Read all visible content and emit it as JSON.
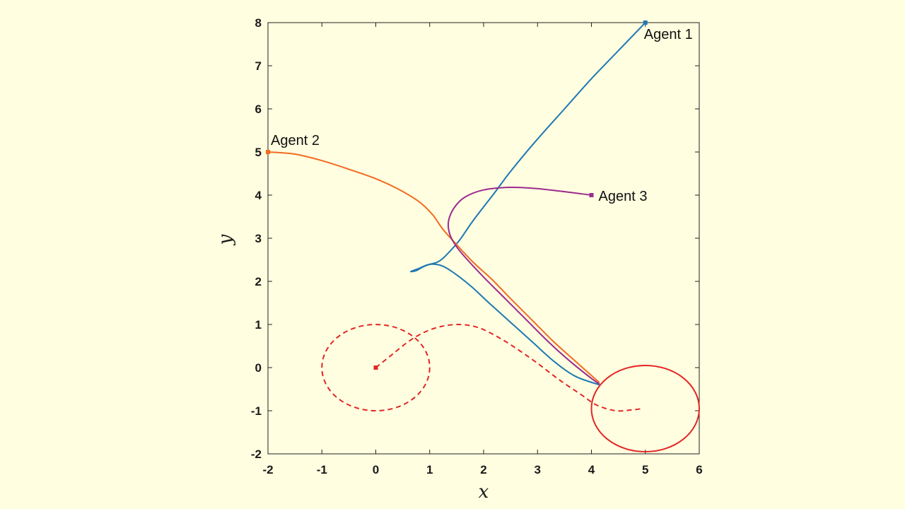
{
  "chart_data": {
    "type": "line",
    "title": "",
    "xlabel": "x",
    "ylabel": "y",
    "xlim": [
      -2,
      6
    ],
    "ylim": [
      -2,
      8
    ],
    "xticks": [
      "-2",
      "-1",
      "0",
      "1",
      "2",
      "3",
      "4",
      "5",
      "6"
    ],
    "yticks": [
      "-2",
      "-1",
      "0",
      "1",
      "2",
      "3",
      "4",
      "5",
      "6",
      "7",
      "8"
    ],
    "grid": false,
    "colors": {
      "agent1": "#1f78b4",
      "agent2": "#f26b21",
      "agent3": "#9b2b8f",
      "target": "#e32626",
      "background": "#fffee0"
    },
    "series": [
      {
        "name": "Agent 1",
        "style": "solid",
        "points": [
          [
            5,
            8
          ],
          [
            4.5,
            7.35
          ],
          [
            4,
            6.7
          ],
          [
            3.5,
            6.0
          ],
          [
            3,
            5.3
          ],
          [
            2.5,
            4.55
          ],
          [
            2.2,
            4.05
          ],
          [
            1.8,
            3.4
          ],
          [
            1.55,
            2.95
          ],
          [
            1.3,
            2.6
          ],
          [
            1.15,
            2.45
          ],
          [
            0.95,
            2.38
          ],
          [
            0.8,
            2.3
          ],
          [
            0.65,
            2.23
          ],
          [
            0.75,
            2.25
          ],
          [
            0.9,
            2.35
          ],
          [
            1.05,
            2.4
          ],
          [
            1.25,
            2.35
          ],
          [
            1.5,
            2.15
          ],
          [
            1.8,
            1.85
          ],
          [
            2.1,
            1.5
          ],
          [
            2.5,
            1.05
          ],
          [
            2.9,
            0.6
          ],
          [
            3.3,
            0.15
          ],
          [
            3.7,
            -0.2
          ],
          [
            4.15,
            -0.4
          ]
        ]
      },
      {
        "name": "Agent 2",
        "style": "solid",
        "points": [
          [
            -2,
            5
          ],
          [
            -1.5,
            4.95
          ],
          [
            -1,
            4.8
          ],
          [
            -0.5,
            4.6
          ],
          [
            0,
            4.38
          ],
          [
            0.4,
            4.15
          ],
          [
            0.8,
            3.85
          ],
          [
            1.05,
            3.55
          ],
          [
            1.25,
            3.2
          ],
          [
            1.5,
            2.85
          ],
          [
            1.8,
            2.45
          ],
          [
            2.15,
            2.05
          ],
          [
            2.5,
            1.6
          ],
          [
            2.9,
            1.1
          ],
          [
            3.3,
            0.6
          ],
          [
            3.7,
            0.15
          ],
          [
            4.15,
            -0.35
          ]
        ]
      },
      {
        "name": "Agent 3",
        "style": "solid",
        "points": [
          [
            4,
            4
          ],
          [
            3.5,
            4.08
          ],
          [
            3,
            4.15
          ],
          [
            2.5,
            4.18
          ],
          [
            2.0,
            4.12
          ],
          [
            1.65,
            3.95
          ],
          [
            1.45,
            3.7
          ],
          [
            1.35,
            3.4
          ],
          [
            1.37,
            3.1
          ],
          [
            1.5,
            2.8
          ],
          [
            1.7,
            2.5
          ],
          [
            2.0,
            2.1
          ],
          [
            2.4,
            1.6
          ],
          [
            2.8,
            1.1
          ],
          [
            3.2,
            0.6
          ],
          [
            3.6,
            0.15
          ],
          [
            4.0,
            -0.25
          ],
          [
            4.15,
            -0.38
          ]
        ]
      },
      {
        "name": "target-path",
        "style": "dashed",
        "points": [
          [
            0,
            0
          ],
          [
            0.3,
            0.3
          ],
          [
            0.6,
            0.6
          ],
          [
            0.9,
            0.82
          ],
          [
            1.2,
            0.95
          ],
          [
            1.55,
            1.0
          ],
          [
            1.9,
            0.93
          ],
          [
            2.25,
            0.72
          ],
          [
            2.6,
            0.45
          ],
          [
            3.0,
            0.1
          ],
          [
            3.4,
            -0.28
          ],
          [
            3.8,
            -0.62
          ],
          [
            4.1,
            -0.87
          ],
          [
            4.45,
            -1.0
          ],
          [
            4.75,
            -0.98
          ],
          [
            4.95,
            -0.95
          ]
        ]
      }
    ],
    "circles": [
      {
        "name": "start-circle",
        "cx": 0,
        "cy": 0,
        "r": 1,
        "style": "dashed"
      },
      {
        "name": "target-circle",
        "cx": 5,
        "cy": -0.95,
        "r": 1,
        "style": "solid"
      }
    ],
    "markers": [
      {
        "name": "agent1-start",
        "x": 5,
        "y": 8
      },
      {
        "name": "agent2-start",
        "x": -2,
        "y": 5
      },
      {
        "name": "agent3-start",
        "x": 4,
        "y": 4
      },
      {
        "name": "target-center",
        "x": 0,
        "y": 0
      }
    ],
    "labels": [
      {
        "name": "agent1-label",
        "text": "Agent 1",
        "x": 5,
        "y": 8,
        "anchor": "below-right"
      },
      {
        "name": "agent2-label",
        "text": "Agent 2",
        "x": -2,
        "y": 5,
        "anchor": "above-right"
      },
      {
        "name": "agent3-label",
        "text": "Agent 3",
        "x": 4,
        "y": 4,
        "anchor": "right"
      }
    ]
  }
}
